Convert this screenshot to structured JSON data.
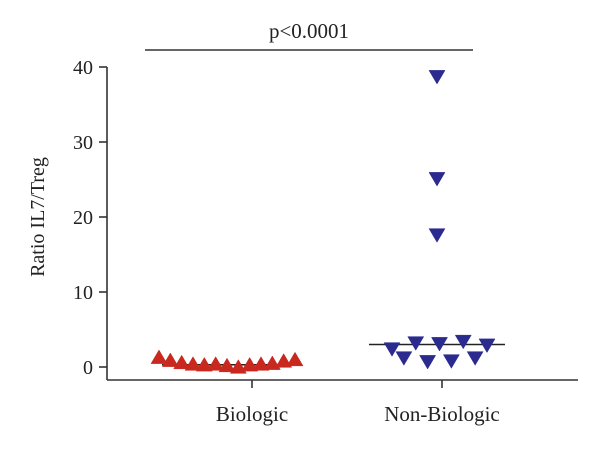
{
  "chart_data": {
    "type": "scatter",
    "title": "",
    "ylabel": "Ratio IL7/Treg",
    "xlabel": "",
    "ylim": [
      -2,
      40
    ],
    "yticks": [
      0,
      10,
      20,
      30,
      40
    ],
    "categories": [
      "Biologic",
      "Non-Biologic"
    ],
    "grid": false,
    "legend": "none",
    "annotation": "p<0.0001",
    "series": [
      {
        "category": "Biologic",
        "marker": "triangle-up",
        "color": "#c8281e",
        "median": 0.3,
        "values": [
          1.2,
          0.8,
          0.5,
          0.3,
          0.2,
          0.3,
          0.1,
          -0.1,
          0.2,
          0.3,
          0.4,
          0.7,
          0.9
        ]
      },
      {
        "category": "Non-Biologic",
        "marker": "triangle-down",
        "color": "#2b2b8f",
        "median": 3.0,
        "values": [
          2.5,
          1.3,
          3.3,
          0.8,
          3.2,
          0.9,
          3.5,
          1.3,
          3.0,
          38.8,
          25.2,
          17.7
        ]
      }
    ]
  }
}
